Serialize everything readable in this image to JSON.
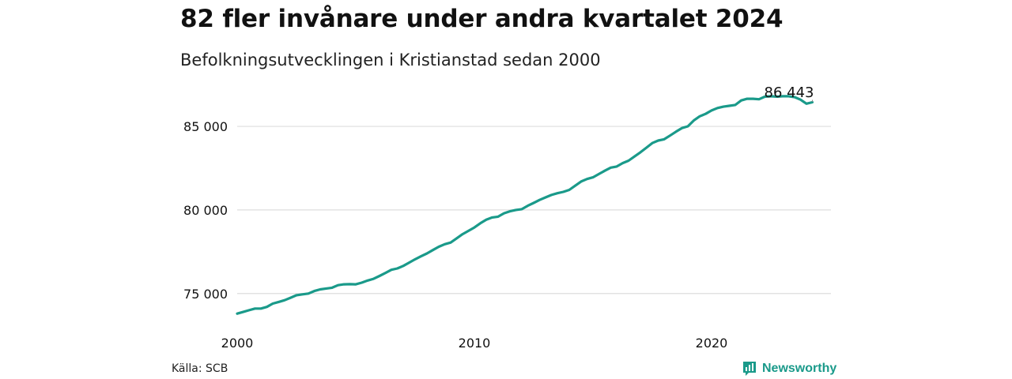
{
  "header": {
    "title": "82 fler invånare under andra kvartalet 2024",
    "subtitle": "Befolkningsutvecklingen i Kristianstad sedan 2000"
  },
  "footer": {
    "source": "Källa: SCB",
    "logo_text": "Newsworthy",
    "logo_icon": "newsworthy-bar-chart-icon"
  },
  "colors": {
    "line": "#1a9a8a",
    "grid": "#dddddd",
    "text": "#111111",
    "brand": "#1a9a8a"
  },
  "chart_data": {
    "type": "line",
    "title": "82 fler invånare under andra kvartalet 2024",
    "subtitle": "Befolkningsutvecklingen i Kristianstad sedan 2000",
    "xlabel": "",
    "ylabel": "",
    "xlim": [
      2000,
      2025
    ],
    "ylim": [
      73100,
      87600
    ],
    "y_ticks": [
      75000,
      80000,
      85000
    ],
    "y_tick_labels": [
      "75 000",
      "80 000",
      "85 000"
    ],
    "x_ticks": [
      2000,
      2010,
      2020
    ],
    "x_tick_labels": [
      "2000",
      "2010",
      "2020"
    ],
    "grid": true,
    "legend": "none",
    "end_label": "86 443",
    "series": [
      {
        "x": [
          2000.0,
          2000.25,
          2000.5,
          2000.75,
          2001.0,
          2001.25,
          2001.5,
          2001.75,
          2002.0,
          2002.25,
          2002.5,
          2002.75,
          2003.0,
          2003.25,
          2003.5,
          2003.75,
          2004.0,
          2004.25,
          2004.5,
          2004.75,
          2005.0,
          2005.25,
          2005.5,
          2005.75,
          2006.0,
          2006.25,
          2006.5,
          2006.75,
          2007.0,
          2007.25,
          2007.5,
          2007.75,
          2008.0,
          2008.25,
          2008.5,
          2008.75,
          2009.0,
          2009.25,
          2009.5,
          2009.75,
          2010.0,
          2010.25,
          2010.5,
          2010.75,
          2011.0,
          2011.25,
          2011.5,
          2011.75,
          2012.0,
          2012.25,
          2012.5,
          2012.75,
          2013.0,
          2013.25,
          2013.5,
          2013.75,
          2014.0,
          2014.25,
          2014.5,
          2014.75,
          2015.0,
          2015.25,
          2015.5,
          2015.75,
          2016.0,
          2016.25,
          2016.5,
          2016.75,
          2017.0,
          2017.25,
          2017.5,
          2017.75,
          2018.0,
          2018.25,
          2018.5,
          2018.75,
          2019.0,
          2019.25,
          2019.5,
          2019.75,
          2020.0,
          2020.25,
          2020.5,
          2020.75,
          2021.0,
          2021.25,
          2021.5,
          2021.75,
          2022.0,
          2022.25,
          2022.5,
          2022.75,
          2023.0,
          2023.25,
          2023.5,
          2023.75,
          2024.0,
          2024.25
        ],
        "values": [
          73800,
          73900,
          74000,
          74100,
          74100,
          74200,
          74400,
          74500,
          74600,
          74750,
          74900,
          74950,
          75000,
          75150,
          75250,
          75300,
          75350,
          75500,
          75550,
          75560,
          75550,
          75650,
          75780,
          75880,
          76050,
          76230,
          76420,
          76500,
          76650,
          76850,
          77050,
          77230,
          77400,
          77600,
          77800,
          77950,
          78050,
          78300,
          78550,
          78750,
          78950,
          79200,
          79420,
          79550,
          79600,
          79800,
          79920,
          80000,
          80050,
          80250,
          80420,
          80600,
          80750,
          80900,
          81000,
          81080,
          81200,
          81450,
          81700,
          81850,
          81950,
          82150,
          82350,
          82530,
          82600,
          82800,
          82950,
          83200,
          83450,
          83720,
          84000,
          84150,
          84230,
          84450,
          84680,
          84900,
          85000,
          85350,
          85600,
          85750,
          85950,
          86100,
          86180,
          86230,
          86280,
          86550,
          86650,
          86650,
          86620,
          86780,
          86800,
          86780,
          86800,
          86800,
          86750,
          86600,
          86360,
          86443
        ]
      }
    ]
  }
}
